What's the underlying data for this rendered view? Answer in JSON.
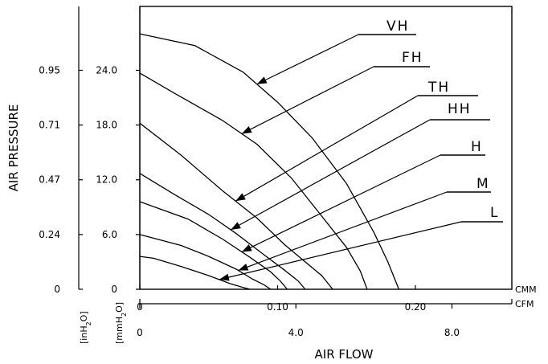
{
  "chart_data": {
    "type": "line",
    "title": "",
    "xlabel": "AIR FLOW",
    "ylabel": "AIR PRESSURE",
    "x_unit_primary": "CMM",
    "x_unit_secondary": "CFM",
    "y_unit_primary": "mmH2O",
    "y_unit_secondary": "inH2O",
    "xlim": [
      0,
      0.27
    ],
    "ylim": [
      0,
      31
    ],
    "x_ticks": [
      0,
      0.1,
      0.2
    ],
    "x_tick_labels": [
      "0",
      "0.10",
      "0.20"
    ],
    "cfm_ticks": [
      0,
      4.0,
      8.0
    ],
    "cfm_tick_labels": [
      "0",
      "4.0",
      "8.0"
    ],
    "y_ticks": [
      0,
      6.0,
      12.0,
      18.0,
      24.0
    ],
    "y_tick_labels": [
      "0",
      "6.0",
      "12.0",
      "18.0",
      "24.0"
    ],
    "inh2o_tick_labels": [
      "0",
      "0.24",
      "0.47",
      "0.71",
      "0.95"
    ],
    "grid": false,
    "legend": "callout labels at right",
    "series": [
      {
        "name": "VH",
        "x": [
          0,
          0.04,
          0.075,
          0.1,
          0.125,
          0.15,
          0.17,
          0.18,
          0.188
        ],
        "y": [
          28.0,
          26.7,
          23.8,
          20.5,
          16.6,
          11.6,
          6.2,
          3.0,
          0
        ]
      },
      {
        "name": "FH",
        "x": [
          0,
          0.025,
          0.06,
          0.085,
          0.11,
          0.13,
          0.15,
          0.16,
          0.165
        ],
        "y": [
          23.7,
          21.5,
          18.5,
          15.9,
          12.2,
          8.4,
          4.6,
          2.0,
          0
        ]
      },
      {
        "name": "TH",
        "x": [
          0,
          0.03,
          0.06,
          0.085,
          0.105,
          0.12,
          0.132,
          0.14
        ],
        "y": [
          18.2,
          14.7,
          10.8,
          7.8,
          4.9,
          3.0,
          1.5,
          0
        ]
      },
      {
        "name": "HH",
        "x": [
          0,
          0.025,
          0.05,
          0.07,
          0.09,
          0.105,
          0.115,
          0.12
        ],
        "y": [
          12.7,
          10.4,
          8.2,
          6.1,
          3.8,
          2.1,
          0.9,
          0
        ]
      },
      {
        "name": "H",
        "x": [
          0,
          0.035,
          0.06,
          0.08,
          0.095,
          0.102,
          0.107
        ],
        "y": [
          9.6,
          7.7,
          5.5,
          3.5,
          1.9,
          0.9,
          0
        ]
      },
      {
        "name": "M",
        "x": [
          0,
          0.03,
          0.05,
          0.07,
          0.082,
          0.09,
          0.095
        ],
        "y": [
          6.0,
          4.8,
          3.6,
          2.2,
          1.1,
          0.5,
          0
        ]
      },
      {
        "name": "L",
        "x": [
          0,
          0.01,
          0.03,
          0.05,
          0.066,
          0.075,
          0.08
        ],
        "y": [
          3.6,
          3.4,
          2.5,
          1.5,
          0.6,
          0.2,
          0
        ]
      }
    ]
  }
}
